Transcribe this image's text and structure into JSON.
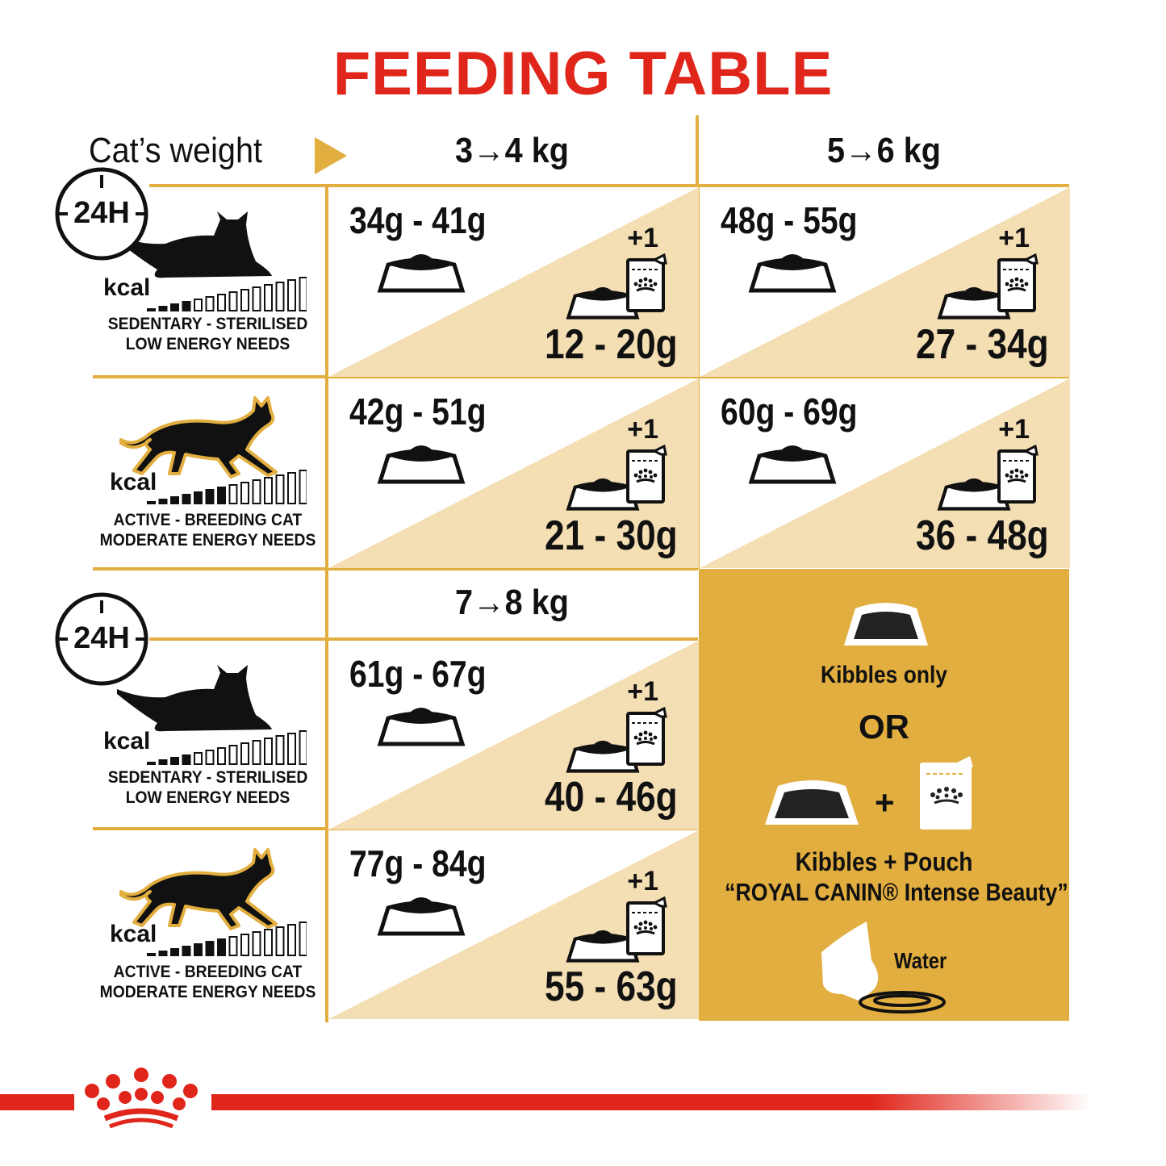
{
  "title": "FEEDING TABLE",
  "header": {
    "label": "Cat’s weight",
    "arrow_icon": "play-triangle-icon",
    "weights": [
      "3→4 kg",
      "5→6 kg",
      "7→8 kg"
    ]
  },
  "colors": {
    "title": "#e0261b",
    "gold": "#e2ae3f",
    "beige": "#f4deb3",
    "brand_red": "#e0261b"
  },
  "profiles": [
    {
      "clock": "24H",
      "kcal": "kcal",
      "line1": "SEDENTARY - STERILISED",
      "line2": "LOW ENERGY NEEDS",
      "type": "lying-cat"
    },
    {
      "kcal": "kcal",
      "line1": "ACTIVE - BREEDING CAT",
      "line2": "MODERATE ENERGY NEEDS",
      "type": "walking-cat"
    },
    {
      "clock": "24H",
      "kcal": "kcal",
      "line1": "SEDENTARY - STERILISED",
      "line2": "LOW ENERGY NEEDS",
      "type": "lying-cat"
    },
    {
      "kcal": "kcal",
      "line1": "ACTIVE - BREEDING CAT",
      "line2": "MODERATE ENERGY NEEDS",
      "type": "walking-cat"
    }
  ],
  "cells": [
    {
      "kibbles": "34g - 41g",
      "plus": "+1",
      "mixed": "12 - 20g"
    },
    {
      "kibbles": "48g - 55g",
      "plus": "+1",
      "mixed": "27 - 34g"
    },
    {
      "kibbles": "42g - 51g",
      "plus": "+1",
      "mixed": "21 - 30g"
    },
    {
      "kibbles": "60g - 69g",
      "plus": "+1",
      "mixed": "36 - 48g"
    },
    {
      "kibbles": "61g - 67g",
      "plus": "+1",
      "mixed": "40 - 46g"
    },
    {
      "kibbles": "77g - 84g",
      "plus": "+1",
      "mixed": "55 - 63g"
    }
  ],
  "legend": {
    "kibbles_only": "Kibbles only",
    "or": "OR",
    "plus": "+",
    "kibbles_pouch": "Kibbles + Pouch",
    "product": "“ROYAL CANIN® Intense Beauty”",
    "water": "Water"
  }
}
